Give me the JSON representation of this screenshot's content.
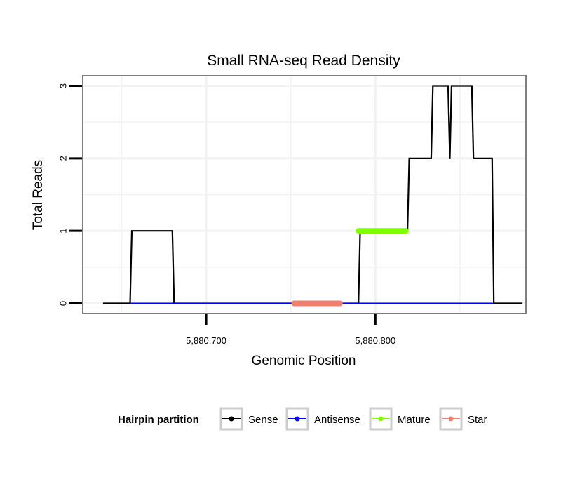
{
  "chart_data": {
    "type": "line",
    "title": "Small RNA-seq Read Density",
    "xlabel": "Genomic Position",
    "ylabel": "Total Reads",
    "xlim": [
      5880627,
      5880889
    ],
    "ylim": [
      -0.14,
      3.14
    ],
    "x_ticks": [
      5880700,
      5880800
    ],
    "x_tick_labels": [
      "5,880,700",
      "5,880,800"
    ],
    "y_ticks": [
      0,
      1,
      2,
      3
    ],
    "y_tick_labels": [
      "0",
      "1",
      "2",
      "3"
    ],
    "grid": true,
    "series": [
      {
        "name": "Sense",
        "color": "#000000",
        "points": [
          [
            5880639,
            0
          ],
          [
            5880655,
            0
          ],
          [
            5880656,
            1
          ],
          [
            5880680,
            1
          ],
          [
            5880681,
            0
          ],
          [
            5880790,
            0
          ],
          [
            5880791,
            1
          ],
          [
            5880819,
            1
          ],
          [
            5880820,
            2
          ],
          [
            5880833,
            2
          ],
          [
            5880834,
            3
          ],
          [
            5880843,
            3
          ],
          [
            5880844,
            2
          ],
          [
            5880845,
            3
          ],
          [
            5880857,
            3
          ],
          [
            5880858,
            2
          ],
          [
            5880869,
            2
          ],
          [
            5880870,
            0
          ],
          [
            5880887,
            0
          ]
        ]
      },
      {
        "name": "Antisense",
        "color": "#0000ff",
        "points": [
          [
            5880655,
            0
          ],
          [
            5880681,
            0
          ],
          [
            5880790,
            0
          ],
          [
            5880870,
            0
          ]
        ]
      },
      {
        "name": "Mature",
        "color": "#7fff00",
        "points": [
          [
            5880790,
            1
          ],
          [
            5880818,
            1
          ]
        ]
      },
      {
        "name": "Star",
        "color": "#f08070",
        "points": [
          [
            5880752,
            0
          ],
          [
            5880779,
            0
          ]
        ]
      }
    ],
    "legend": {
      "title": "Hairpin partition",
      "position": "bottom",
      "entries": [
        "Sense",
        "Antisense",
        "Mature",
        "Star"
      ]
    }
  }
}
